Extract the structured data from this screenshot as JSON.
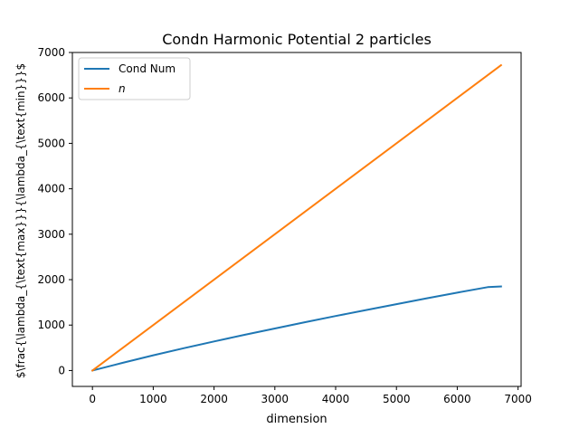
{
  "chart_data": {
    "type": "line",
    "title": "Condn Harmonic Potential 2 particles",
    "xlabel": "dimension",
    "ylabel": "$\\frac{\\lambda_{\\text{max}}}{\\lambda_{\\text{min}}}$",
    "xlim": [
      -330,
      7050
    ],
    "ylim": [
      -350,
      7000
    ],
    "xticks": [
      0,
      1000,
      2000,
      3000,
      4000,
      5000,
      6000,
      7000
    ],
    "yticks": [
      0,
      1000,
      2000,
      3000,
      4000,
      5000,
      6000,
      7000
    ],
    "legend_position": "upper-left",
    "series": [
      {
        "name": "Cond Num",
        "color": "#1f77b4",
        "x": [
          0,
          500,
          1000,
          1500,
          2000,
          2500,
          3000,
          3500,
          4000,
          4500,
          5000,
          5500,
          6000,
          6500,
          6720
        ],
        "y": [
          0,
          170,
          335,
          490,
          640,
          785,
          925,
          1065,
          1200,
          1330,
          1460,
          1590,
          1715,
          1835,
          1850
        ]
      },
      {
        "name": "n",
        "color": "#ff7f0e",
        "x": [
          0,
          6720
        ],
        "y": [
          0,
          6720
        ]
      }
    ]
  }
}
